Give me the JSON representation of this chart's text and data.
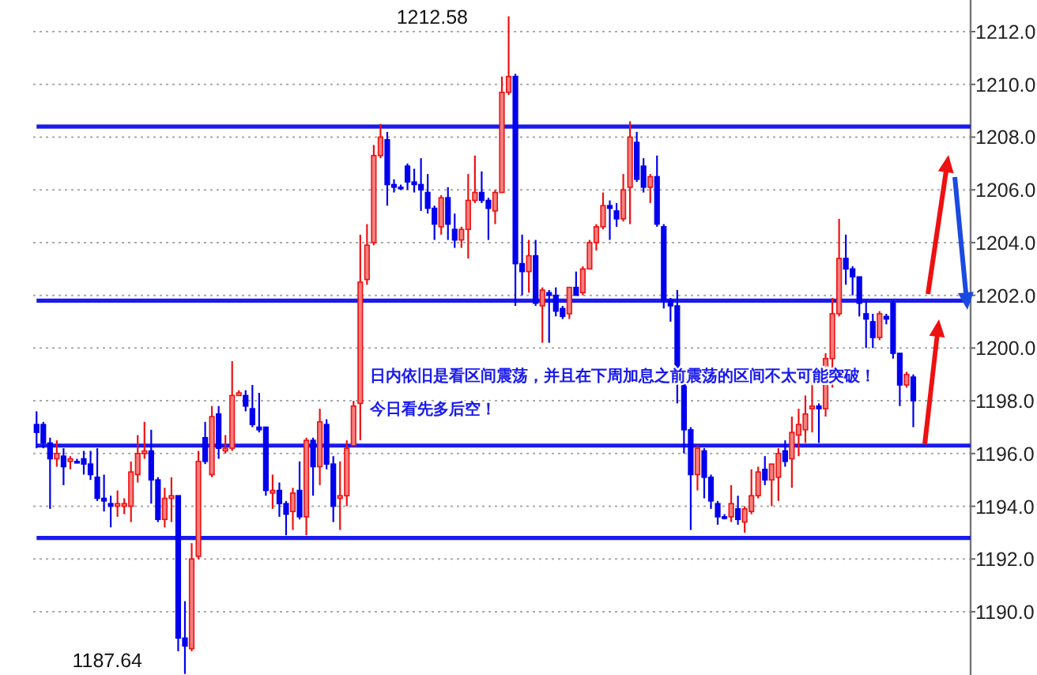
{
  "chart_data": {
    "type": "candlestick",
    "categories": [
      null,
      null,
      null,
      null,
      null,
      null,
      null,
      null,
      null,
      null,
      null,
      null,
      null,
      null,
      null,
      null,
      null,
      null,
      null,
      null,
      null,
      null,
      null,
      null,
      null,
      null,
      null,
      null,
      null,
      null,
      null,
      null,
      null,
      null,
      null,
      null,
      null,
      null,
      null,
      null,
      null,
      null,
      null,
      null,
      null,
      null,
      null,
      null,
      null,
      null,
      null,
      null,
      null,
      null,
      null,
      null,
      null,
      null,
      null,
      null,
      null,
      null,
      null,
      null,
      null,
      null,
      null,
      null,
      null,
      null,
      null,
      null,
      null,
      null,
      null,
      null,
      null,
      null,
      null,
      null,
      null,
      null,
      null,
      null,
      null,
      null,
      null,
      null,
      null,
      null,
      null,
      null,
      null,
      null,
      null,
      null,
      null,
      null,
      null,
      null,
      null,
      null,
      null,
      null,
      null,
      null,
      null,
      null,
      null,
      null,
      null,
      null,
      null,
      null,
      null,
      null,
      null,
      null,
      null,
      null,
      null,
      null,
      null,
      null,
      null,
      null,
      null,
      null,
      null,
      null,
      null,
      null,
      null,
      null,
      null,
      null,
      null,
      null,
      null
    ],
    "ohlc": [
      [
        1197.1,
        1197.6,
        1196.2,
        1196.8
      ],
      [
        1197.1,
        1197.2,
        1196.2,
        1196.4
      ],
      [
        1196.4,
        1196.6,
        1193.9,
        1195.8
      ],
      [
        1195.8,
        1196.5,
        1195.5,
        1196.0
      ],
      [
        1195.9,
        1196.2,
        1194.8,
        1195.5
      ],
      [
        1195.7,
        1195.9,
        1195.4,
        1195.8
      ],
      [
        1195.7,
        1195.8,
        1195.7,
        1195.7
      ],
      [
        1195.8,
        1196.1,
        1195.2,
        1195.6
      ],
      [
        1195.6,
        1196.1,
        1195.0,
        1195.2
      ],
      [
        1195.1,
        1196.2,
        1194.2,
        1194.3
      ],
      [
        1194.3,
        1195.2,
        1193.8,
        1194.2
      ],
      [
        1194.1,
        1194.4,
        1193.2,
        1194.0
      ],
      [
        1194.0,
        1194.6,
        1193.6,
        1194.1
      ],
      [
        1194.0,
        1194.3,
        1193.7,
        1194.1
      ],
      [
        1194.0,
        1195.7,
        1193.4,
        1195.3
      ],
      [
        1195.2,
        1196.7,
        1194.9,
        1196.0
      ],
      [
        1196.0,
        1197.2,
        1195.8,
        1196.1
      ],
      [
        1196.1,
        1196.9,
        1194.1,
        1195.0
      ],
      [
        1195.0,
        1195.1,
        1193.4,
        1193.5
      ],
      [
        1193.5,
        1194.7,
        1193.2,
        1194.3
      ],
      [
        1194.3,
        1195.1,
        1193.4,
        1194.4
      ],
      [
        1194.4,
        1194.4,
        1188.5,
        1189.0
      ],
      [
        1189.0,
        1190.4,
        1187.64,
        1188.7
      ],
      [
        1188.6,
        1192.6,
        1188.5,
        1192.0
      ],
      [
        1192.1,
        1196.1,
        1192.0,
        1195.7
      ],
      [
        1196.6,
        1197.2,
        1195.6,
        1195.7
      ],
      [
        1195.2,
        1197.8,
        1195.1,
        1197.4
      ],
      [
        1197.5,
        1197.8,
        1195.8,
        1196.2
      ],
      [
        1196.1,
        1196.7,
        1196.0,
        1196.2
      ],
      [
        1196.2,
        1199.5,
        1196.1,
        1198.2
      ],
      [
        1198.2,
        1198.4,
        1198.2,
        1198.3
      ],
      [
        1198.2,
        1198.4,
        1197.6,
        1197.8
      ],
      [
        1197.7,
        1198.6,
        1197.0,
        1197.1
      ],
      [
        1197.0,
        1198.3,
        1196.8,
        1196.9
      ],
      [
        1197.0,
        1197.0,
        1194.4,
        1194.6
      ],
      [
        1194.5,
        1195.2,
        1193.9,
        1194.6
      ],
      [
        1194.6,
        1194.9,
        1193.6,
        1194.1
      ],
      [
        1194.1,
        1194.2,
        1192.9,
        1193.7
      ],
      [
        1193.8,
        1194.7,
        1193.1,
        1194.5
      ],
      [
        1194.6,
        1195.7,
        1193.5,
        1193.6
      ],
      [
        1193.6,
        1196.6,
        1192.9,
        1196.5
      ],
      [
        1196.5,
        1196.6,
        1194.4,
        1195.5
      ],
      [
        1195.5,
        1197.7,
        1194.8,
        1197.2
      ],
      [
        1197.1,
        1197.3,
        1195.4,
        1195.6
      ],
      [
        1195.6,
        1195.9,
        1193.4,
        1194.0
      ],
      [
        1194.3,
        1195.7,
        1193.1,
        1194.4
      ],
      [
        1194.4,
        1196.5,
        1194.0,
        1196.2
      ],
      [
        1196.3,
        1198.0,
        1196.3,
        1197.8
      ],
      [
        1197.9,
        1204.3,
        1196.5,
        1202.5
      ],
      [
        1202.6,
        1204.7,
        1202.4,
        1203.9
      ],
      [
        1204.0,
        1207.7,
        1203.9,
        1207.3
      ],
      [
        1207.3,
        1208.5,
        1207.2,
        1208.0
      ],
      [
        1207.9,
        1208.2,
        1205.4,
        1206.2
      ],
      [
        1206.2,
        1206.4,
        1205.9,
        1206.1
      ],
      [
        1206.1,
        1206.2,
        1206.0,
        1206.1
      ],
      [
        1206.9,
        1207.0,
        1206.0,
        1206.3
      ],
      [
        1206.3,
        1206.8,
        1205.9,
        1206.2
      ],
      [
        1206.2,
        1207.2,
        1205.2,
        1206.0
      ],
      [
        1205.9,
        1206.6,
        1205.1,
        1205.3
      ],
      [
        1205.3,
        1205.4,
        1204.1,
        1204.7
      ],
      [
        1204.6,
        1205.8,
        1204.3,
        1205.7
      ],
      [
        1205.7,
        1206.1,
        1204.1,
        1204.7
      ],
      [
        1204.5,
        1205.1,
        1203.8,
        1204.1
      ],
      [
        1204.1,
        1204.6,
        1203.8,
        1204.5
      ],
      [
        1204.5,
        1206.6,
        1203.4,
        1205.6
      ],
      [
        1205.6,
        1207.3,
        1205.5,
        1205.9
      ],
      [
        1205.9,
        1206.7,
        1205.5,
        1205.6
      ],
      [
        1205.6,
        1205.7,
        1204.1,
        1205.3
      ],
      [
        1205.2,
        1206.0,
        1204.7,
        1205.9
      ],
      [
        1205.9,
        1210.3,
        1205.9,
        1209.7
      ],
      [
        1209.7,
        1212.58,
        1209.6,
        1210.3
      ],
      [
        1210.3,
        1210.4,
        1201.6,
        1203.2
      ],
      [
        1203.2,
        1204.3,
        1202.0,
        1202.9
      ],
      [
        1202.9,
        1204.1,
        1202.1,
        1203.5
      ],
      [
        1203.5,
        1204.1,
        1201.6,
        1201.7
      ],
      [
        1201.6,
        1202.3,
        1200.2,
        1202.2
      ],
      [
        1202.1,
        1202.2,
        1200.2,
        1202.0
      ],
      [
        1202.0,
        1202.3,
        1201.2,
        1201.4
      ],
      [
        1201.5,
        1201.6,
        1201.1,
        1201.2
      ],
      [
        1201.3,
        1202.3,
        1201.1,
        1202.3
      ],
      [
        1202.3,
        1202.9,
        1202.0,
        1202.0
      ],
      [
        1202.1,
        1203.1,
        1202.0,
        1203.0
      ],
      [
        1203.0,
        1204.1,
        1203.0,
        1204.0
      ],
      [
        1204.0,
        1204.7,
        1203.7,
        1204.6
      ],
      [
        1204.6,
        1205.9,
        1204.5,
        1205.4
      ],
      [
        1205.4,
        1205.6,
        1204.1,
        1205.3
      ],
      [
        1205.2,
        1205.5,
        1204.6,
        1204.9
      ],
      [
        1204.9,
        1206.6,
        1204.8,
        1206.0
      ],
      [
        1206.1,
        1208.6,
        1204.7,
        1208.0
      ],
      [
        1207.8,
        1208.2,
        1206.3,
        1206.4
      ],
      [
        1206.9,
        1207.2,
        1205.9,
        1206.1
      ],
      [
        1206.1,
        1206.6,
        1205.5,
        1206.5
      ],
      [
        1206.5,
        1207.3,
        1204.6,
        1204.7
      ],
      [
        1204.6,
        1204.7,
        1201.5,
        1201.8
      ],
      [
        1201.8,
        1201.9,
        1201.0,
        1201.6
      ],
      [
        1201.6,
        1202.2,
        1197.9,
        1198.8
      ],
      [
        1198.8,
        1198.9,
        1196.0,
        1196.9
      ],
      [
        1196.9,
        1197.0,
        1193.1,
        1195.2
      ],
      [
        1195.2,
        1196.3,
        1194.6,
        1196.2
      ],
      [
        1196.1,
        1196.2,
        1194.3,
        1195.1
      ],
      [
        1195.1,
        1195.2,
        1193.9,
        1194.2
      ],
      [
        1194.1,
        1194.2,
        1193.3,
        1193.6
      ],
      [
        1193.6,
        1193.7,
        1193.5,
        1193.6
      ],
      [
        1193.6,
        1194.8,
        1193.4,
        1194.1
      ],
      [
        1193.9,
        1194.4,
        1193.3,
        1193.5
      ],
      [
        1193.4,
        1194.0,
        1193.0,
        1193.9
      ],
      [
        1193.8,
        1195.4,
        1193.7,
        1194.4
      ],
      [
        1194.4,
        1195.5,
        1194.3,
        1195.3
      ],
      [
        1195.4,
        1195.9,
        1194.8,
        1195.0
      ],
      [
        1195.0,
        1195.6,
        1194.0,
        1195.6
      ],
      [
        1195.1,
        1196.2,
        1194.2,
        1196.0
      ],
      [
        1196.1,
        1196.5,
        1195.5,
        1195.7
      ],
      [
        1195.8,
        1197.4,
        1194.7,
        1196.8
      ],
      [
        1196.7,
        1197.7,
        1195.9,
        1197.1
      ],
      [
        1196.9,
        1198.2,
        1196.4,
        1197.5
      ],
      [
        1197.7,
        1198.7,
        1196.8,
        1197.8
      ],
      [
        1197.8,
        1197.9,
        1196.4,
        1197.7
      ],
      [
        1197.7,
        1199.8,
        1197.4,
        1199.6
      ],
      [
        1199.6,
        1201.9,
        1198.5,
        1201.3
      ],
      [
        1201.3,
        1204.9,
        1201.2,
        1203.4
      ],
      [
        1203.4,
        1204.3,
        1202.4,
        1203.0
      ],
      [
        1203.0,
        1203.1,
        1202.0,
        1202.7
      ],
      [
        1202.7,
        1202.7,
        1201.2,
        1201.7
      ],
      [
        1201.3,
        1201.8,
        1200.0,
        1201.1
      ],
      [
        1201.0,
        1201.3,
        1200.0,
        1200.4
      ],
      [
        1200.4,
        1201.4,
        1200.3,
        1201.3
      ],
      [
        1201.2,
        1201.3,
        1200.9,
        1201.1
      ],
      [
        1201.7,
        1201.8,
        1199.6,
        1199.8
      ],
      [
        1199.8,
        1199.8,
        1197.8,
        1198.6
      ],
      [
        1198.6,
        1199.1,
        1198.5,
        1199.0
      ],
      [
        1198.9,
        1199.0,
        1197.0,
        1198.0
      ],
      null,
      null,
      null,
      null,
      null,
      null,
      null,
      null
    ],
    "colors": [
      "#0000ee",
      "#0000ee",
      "#0000ee",
      "#ee1111",
      "#0000ee",
      "#ee1111",
      "#0000ee",
      "#0000ee",
      "#0000ee",
      "#0000ee",
      "#0000ee",
      "#0000ee",
      "#ee1111",
      "#ee1111",
      "#ee1111",
      "#ee1111",
      "#ee1111",
      "#0000ee",
      "#0000ee",
      "#ee1111",
      "#ee1111",
      "#0000ee",
      "#0000ee",
      "#ee1111",
      "#ee1111",
      "#0000ee",
      "#ee1111",
      "#0000ee",
      "#ee1111",
      "#ee1111",
      "#ee1111",
      "#0000ee",
      "#0000ee",
      "#0000ee",
      "#0000ee",
      "#ee1111",
      "#0000ee",
      "#0000ee",
      "#ee1111",
      "#0000ee",
      "#ee1111",
      "#0000ee",
      "#ee1111",
      "#0000ee",
      "#0000ee",
      "#ee1111",
      "#ee1111",
      "#ee1111",
      "#ee1111",
      "#ee1111",
      "#ee1111",
      "#ee1111",
      "#0000ee",
      "#0000ee",
      "#0000ee",
      "#0000ee",
      "#0000ee",
      "#0000ee",
      "#0000ee",
      "#0000ee",
      "#ee1111",
      "#0000ee",
      "#0000ee",
      "#ee1111",
      "#ee1111",
      "#ee1111",
      "#0000ee",
      "#0000ee",
      "#ee1111",
      "#ee1111",
      "#ee1111",
      "#0000ee",
      "#0000ee",
      "#ee1111",
      "#0000ee",
      "#ee1111",
      "#0000ee",
      "#0000ee",
      "#0000ee",
      "#ee1111",
      "#0000ee",
      "#ee1111",
      "#ee1111",
      "#ee1111",
      "#ee1111",
      "#0000ee",
      "#0000ee",
      "#ee1111",
      "#ee1111",
      "#0000ee",
      "#0000ee",
      "#ee1111",
      "#0000ee",
      "#0000ee",
      "#0000ee",
      "#0000ee",
      "#0000ee",
      "#0000ee",
      "#ee1111",
      "#0000ee",
      "#0000ee",
      "#0000ee",
      "#0000ee",
      "#ee1111",
      "#0000ee",
      "#ee1111",
      "#ee1111",
      "#ee1111",
      "#0000ee",
      "#ee1111",
      "#ee1111",
      "#0000ee",
      "#ee1111",
      "#ee1111",
      "#ee1111",
      "#ee1111",
      "#0000ee",
      "#ee1111",
      "#ee1111",
      "#ee1111",
      "#0000ee",
      "#0000ee",
      "#0000ee",
      "#0000ee",
      "#0000ee",
      "#ee1111",
      "#0000ee",
      "#0000ee",
      "#0000ee",
      "#ee1111",
      "#0000ee",
      null,
      null,
      null,
      null,
      null,
      null,
      null,
      null
    ],
    "ylim": [
      1187.6,
      1213.2
    ],
    "yticks": [
      {
        "value": 1190,
        "label": "1190.0"
      },
      {
        "value": 1192,
        "label": "1192.0"
      },
      {
        "value": 1194,
        "label": "1194.0"
      },
      {
        "value": 1196,
        "label": "1196.0"
      },
      {
        "value": 1198,
        "label": "1198.0"
      },
      {
        "value": 1200,
        "label": "1200.0"
      },
      {
        "value": 1202,
        "label": "1202.0"
      },
      {
        "value": 1204,
        "label": "1204.0"
      },
      {
        "value": 1206,
        "label": "1206.0"
      },
      {
        "value": 1208,
        "label": "1208.0"
      },
      {
        "value": 1210,
        "label": "1210.0"
      },
      {
        "value": 1212,
        "label": "1212.0"
      }
    ],
    "grid": "y",
    "ref_lines": [
      {
        "axis": "y",
        "value": 1208.4,
        "color": "#1a1aee"
      },
      {
        "axis": "y",
        "value": 1201.8,
        "color": "#1a1aee"
      },
      {
        "axis": "y",
        "value": 1196.3,
        "color": "#1a1aee"
      },
      {
        "axis": "y",
        "value": 1192.8,
        "color": "#1a1aee"
      }
    ],
    "annotations": [
      "1212.58",
      "1187.64",
      "日内依旧是看区间震荡，并且在下周加息之前震荡的区间不太可能突破！",
      "今日看先多后空！"
    ]
  }
}
